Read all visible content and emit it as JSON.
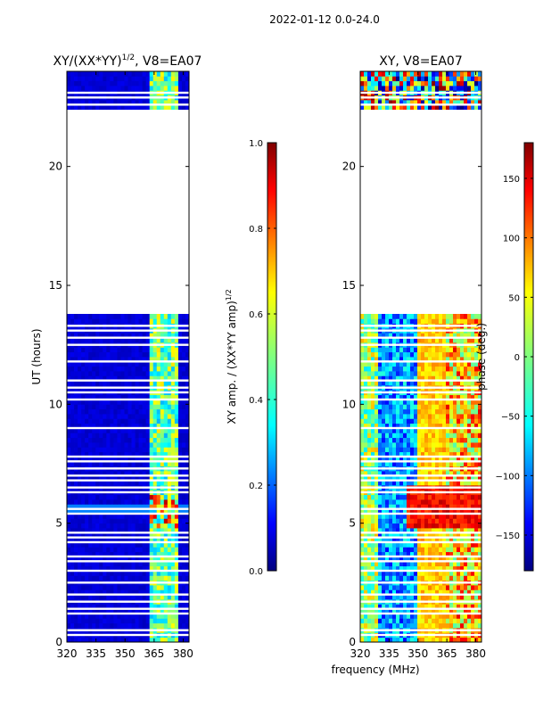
{
  "figure_title": "2022-01-12 0.0-24.0",
  "colors": {
    "jet": [
      "#00007f",
      "#0000ff",
      "#007fff",
      "#00ffff",
      "#7fff7f",
      "#ffff00",
      "#ff7f00",
      "#ff0000",
      "#7f0000"
    ],
    "frame": "#000000",
    "background": "#ffffff"
  },
  "chart_data": [
    {
      "type": "heatmap",
      "title_prefix": "XY/(XX*YY)",
      "title_exponent": "1/2",
      "title_suffix": ", V8=EA07",
      "xlabel": "",
      "ylabel": "UT (hours)",
      "xlim": [
        320,
        383
      ],
      "ylim": [
        0,
        24
      ],
      "x_ticks": [
        320,
        335,
        350,
        365,
        380
      ],
      "y_ticks": [
        0,
        5,
        10,
        15,
        20
      ],
      "colorbar": {
        "label_prefix": "XY amp. / (XX*YY amp)",
        "label_exponent": "1/2",
        "range": [
          0,
          1
        ],
        "ticks": [
          "0.0",
          "0.2",
          "0.4",
          "0.6",
          "0.8",
          "1.0"
        ],
        "tick_values": [
          0,
          0.2,
          0.4,
          0.6,
          0.8,
          1.0
        ]
      },
      "data_time_ranges": [
        [
          0,
          13.8
        ],
        [
          22.4,
          24
        ]
      ],
      "flagged_hours": [
        0.3,
        0.5,
        1.2,
        1.4,
        1.7,
        2.0,
        2.5,
        3.0,
        3.4,
        3.6,
        4.2,
        4.4,
        4.6,
        5.4,
        5.6,
        6.3,
        6.5,
        6.8,
        7.0,
        7.3,
        7.6,
        7.8,
        9.0,
        10.2,
        10.5,
        10.7,
        11.0,
        11.8,
        12.5,
        12.8,
        13.1,
        13.3,
        22.6,
        22.9,
        23.1
      ],
      "high_channel_band_mhz": [
        363,
        378
      ]
    },
    {
      "type": "heatmap",
      "title": "XY, V8=EA07",
      "xlabel": "frequency (MHz)",
      "ylabel": "",
      "xlim": [
        320,
        383
      ],
      "ylim": [
        0,
        24
      ],
      "x_ticks": [
        320,
        335,
        350,
        365,
        380
      ],
      "y_ticks": [
        0,
        5,
        10,
        15,
        20
      ],
      "colorbar": {
        "label": "phase (deg.)",
        "range": [
          -180,
          180
        ],
        "ticks": [
          "−150",
          "−100",
          "−50",
          "0",
          "50",
          "100",
          "150"
        ],
        "tick_values": [
          -150,
          -100,
          -50,
          0,
          50,
          100,
          150
        ]
      },
      "data_time_ranges": [
        [
          0,
          13.8
        ],
        [
          22.4,
          24
        ]
      ],
      "flagged_hours": [
        0.3,
        0.5,
        1.2,
        1.4,
        1.7,
        2.0,
        2.5,
        3.0,
        3.4,
        3.6,
        4.2,
        4.4,
        4.6,
        5.4,
        5.6,
        6.3,
        6.5,
        6.8,
        7.0,
        7.3,
        7.6,
        7.8,
        9.0,
        10.2,
        10.5,
        10.7,
        11.0,
        11.8,
        12.5,
        12.8,
        13.1,
        13.3,
        22.6,
        22.9,
        23.1
      ]
    }
  ]
}
